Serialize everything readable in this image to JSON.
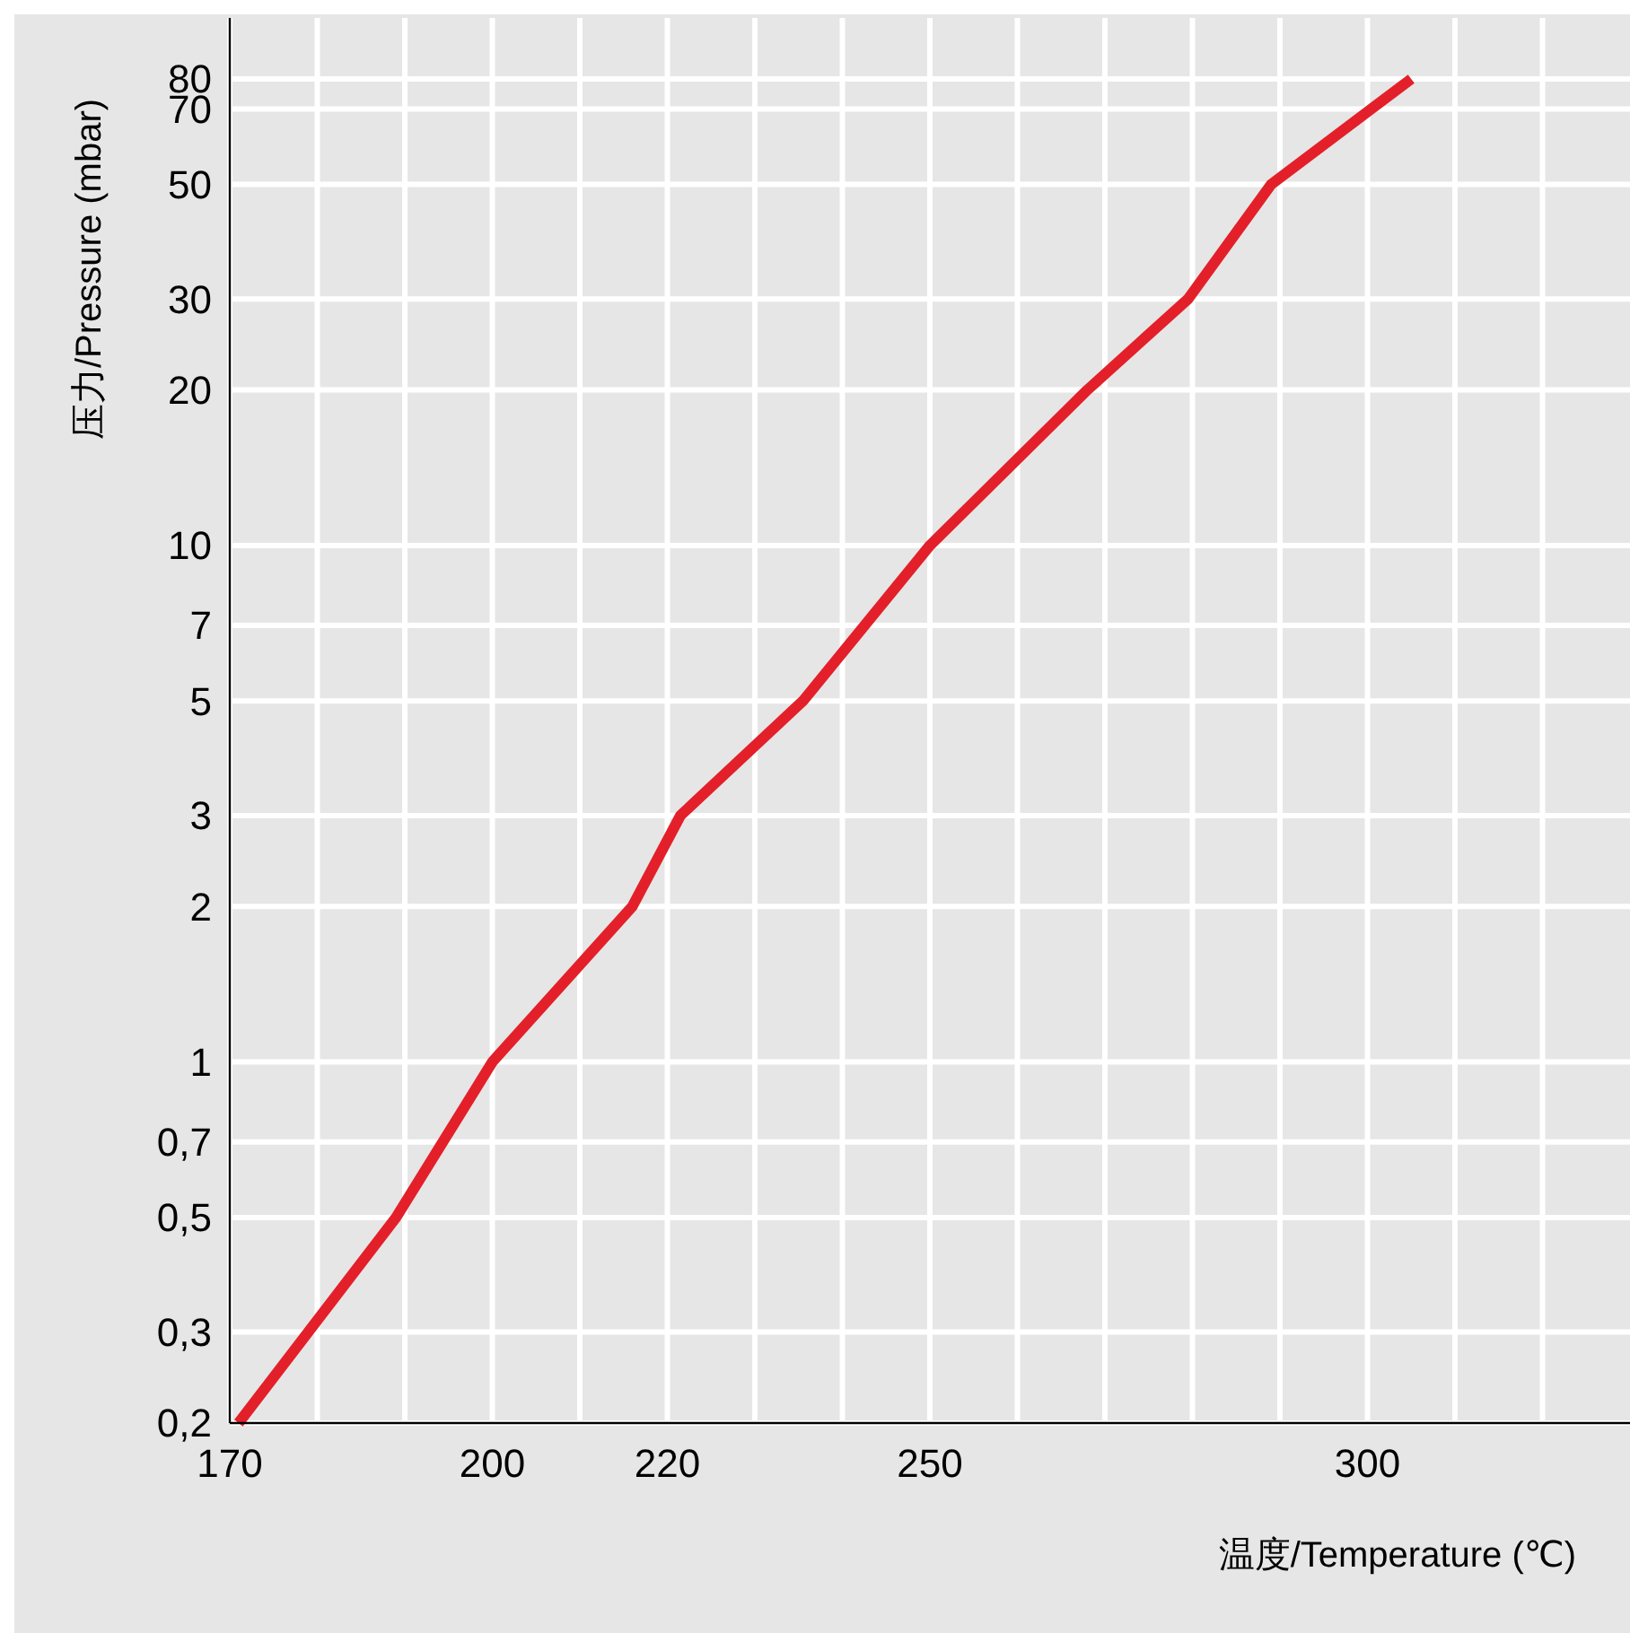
{
  "chart_data": {
    "type": "line",
    "xlabel": "温度/Temperature (℃)",
    "ylabel": "压力/Pressure (mbar)",
    "x": [
      171,
      189,
      200,
      216,
      221.5,
      235.5,
      250,
      268,
      279.5,
      289,
      305
    ],
    "series": [
      {
        "color": "#e3202a",
        "values": [
          0.2,
          0.5,
          1,
          2,
          3,
          5,
          10,
          20,
          30,
          50,
          80
        ]
      }
    ],
    "log": "y",
    "grid": true,
    "xlim": [
      170,
      330
    ],
    "xticks": [
      170,
      {
        "value": 180,
        "label": null
      },
      {
        "value": 190,
        "label": null
      },
      200,
      {
        "value": 210,
        "label": null
      },
      220,
      {
        "value": 230,
        "label": null
      },
      {
        "value": 240,
        "label": null
      },
      250,
      {
        "value": 260,
        "label": null
      },
      {
        "value": 270,
        "label": null
      },
      {
        "value": 280,
        "label": null
      },
      {
        "value": 290,
        "label": null
      },
      300,
      {
        "value": 310,
        "label": null
      },
      {
        "value": 320,
        "label": null
      }
    ],
    "ylim": [
      0.2,
      105
    ],
    "yticks": [
      {
        "value": 0.2,
        "label": "0,2"
      },
      {
        "value": 0.3,
        "label": "0,3"
      },
      {
        "value": 0.5,
        "label": "0,5"
      },
      {
        "value": 0.7,
        "label": "0,7"
      },
      1,
      2,
      3,
      5,
      7,
      10,
      20,
      30,
      50,
      70,
      80
    ],
    "marker": "none",
    "line_style": "solid"
  }
}
